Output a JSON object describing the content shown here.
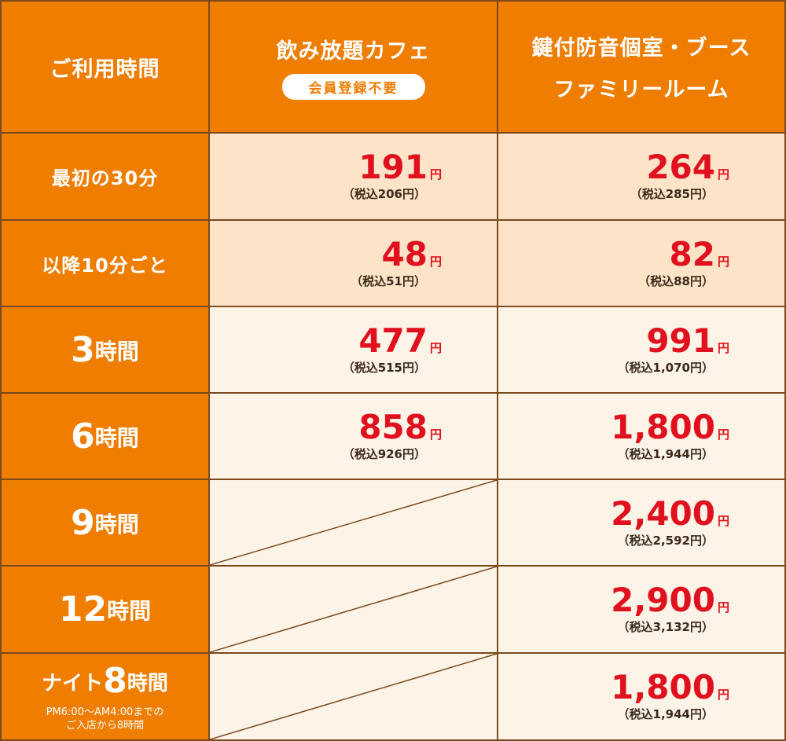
{
  "header": {
    "col_time": "ご利用時間",
    "col_cafe": "飲み放題カフェ",
    "cafe_badge": "会員登録不要",
    "col_room_line1": "鍵付防音個室・ブース",
    "col_room_line2": "ファミリールーム"
  },
  "currency_unit": "円",
  "rows": [
    {
      "label": "最初の30分",
      "cafe_price": "191",
      "cafe_tax": "（税込206円）",
      "room_price": "264",
      "room_tax": "（税込285円）"
    },
    {
      "label": "以降10分ごと",
      "cafe_price": "48",
      "cafe_tax": "（税込51円）",
      "room_price": "82",
      "room_tax": "（税込88円）"
    },
    {
      "label_num": "3",
      "label_unit": "時間",
      "cafe_price": "477",
      "cafe_tax": "（税込515円）",
      "room_price": "991",
      "room_tax": "（税込1,070円）"
    },
    {
      "label_num": "6",
      "label_unit": "時間",
      "cafe_price": "858",
      "cafe_tax": "（税込926円）",
      "room_price": "1,800",
      "room_tax": "（税込1,944円）"
    },
    {
      "label_num": "9",
      "label_unit": "時間",
      "room_price": "2,400",
      "room_tax": "（税込2,592円）"
    },
    {
      "label_num": "12",
      "label_unit": "時間",
      "room_price": "2,900",
      "room_tax": "（税込3,132円）"
    },
    {
      "label_prefix": "ナイト",
      "label_num": "8",
      "label_unit": "時間",
      "note_line1": "PM6:00～AM4:00までの",
      "note_line2": "ご入店から8時間",
      "room_price": "1,800",
      "room_tax": "（税込1,944円）"
    }
  ],
  "colors": {
    "header_bg": "#ee7d00",
    "price_red": "#e0101e",
    "row_pink": "#fde4c8",
    "row_cream": "#fdf3e6",
    "border": "#7a4a1e"
  }
}
